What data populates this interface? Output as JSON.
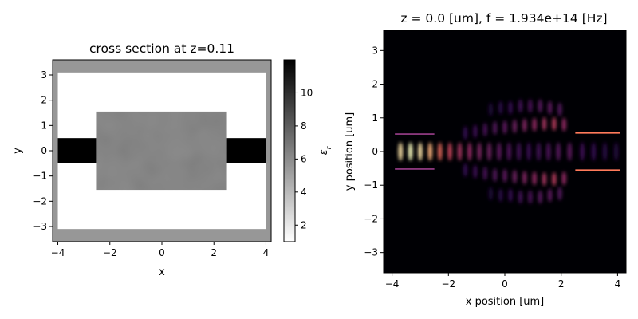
{
  "chart_data": [
    {
      "type": "heatmap",
      "title": "cross section at z=0.11",
      "xlabel": "x",
      "ylabel": "y",
      "xlim": [
        -4.2,
        4.2
      ],
      "ylim": [
        -3.6,
        3.6
      ],
      "xticks": [
        -4,
        -2,
        0,
        2,
        4
      ],
      "yticks": [
        -3,
        -2,
        -1,
        0,
        1,
        2,
        3
      ],
      "colorbar": {
        "label": "ε_r",
        "range": [
          1,
          12
        ],
        "ticks": [
          2,
          4,
          6,
          8,
          10
        ],
        "colormap": "greys"
      },
      "structures": [
        {
          "name": "pml-frame",
          "x": [
            -4.2,
            4.2
          ],
          "y": [
            -3.6,
            3.6
          ],
          "eps": 5.5
        },
        {
          "name": "simulation-domain",
          "x": [
            -4.0,
            4.0
          ],
          "y": [
            -3.1,
            3.1
          ],
          "eps": 1.0
        },
        {
          "name": "left-waveguide",
          "x": [
            -4.0,
            -2.5
          ],
          "y": [
            -0.5,
            0.5
          ],
          "eps": 12.0
        },
        {
          "name": "right-waveguide",
          "x": [
            2.5,
            4.0
          ],
          "y": [
            -0.5,
            0.5
          ],
          "eps": 12.0
        },
        {
          "name": "design-region",
          "x": [
            -2.5,
            2.5
          ],
          "y": [
            -1.55,
            1.55
          ],
          "eps": 6.0
        }
      ]
    },
    {
      "type": "heatmap",
      "title": "z = 0.0 [um], f = 1.934e+14 [Hz]",
      "xlabel": "x position [um]",
      "ylabel": "y position [um]",
      "xlim": [
        -4.3,
        4.3
      ],
      "ylim": [
        -3.6,
        3.6
      ],
      "xticks": [
        -4,
        -2,
        0,
        2,
        4
      ],
      "yticks": [
        -3,
        -2,
        -1,
        0,
        1,
        2,
        3
      ],
      "colormap": "magma",
      "background": "#000004",
      "waveguide_edges": [
        {
          "x": [
            -3.9,
            -2.5
          ],
          "y": 0.52
        },
        {
          "x": [
            -3.9,
            -2.5
          ],
          "y": -0.52
        },
        {
          "x": [
            2.5,
            4.1
          ],
          "y": 0.55
        },
        {
          "x": [
            2.5,
            4.1
          ],
          "y": -0.55
        }
      ],
      "field_lobes": [
        {
          "x": -3.7,
          "y": 0.0,
          "intensity": 0.95
        },
        {
          "x": -3.35,
          "y": 0.0,
          "intensity": 1.0
        },
        {
          "x": -3.0,
          "y": 0.0,
          "intensity": 0.95
        },
        {
          "x": -2.65,
          "y": 0.0,
          "intensity": 0.85
        },
        {
          "x": -2.3,
          "y": 0.0,
          "intensity": 0.7
        },
        {
          "x": -1.95,
          "y": 0.0,
          "intensity": 0.62
        },
        {
          "x": -1.6,
          "y": 0.0,
          "intensity": 0.55
        },
        {
          "x": -1.25,
          "y": 0.0,
          "intensity": 0.5
        },
        {
          "x": -0.9,
          "y": 0.0,
          "intensity": 0.45
        },
        {
          "x": -0.55,
          "y": 0.0,
          "intensity": 0.42
        },
        {
          "x": -0.2,
          "y": 0.0,
          "intensity": 0.38
        },
        {
          "x": 0.15,
          "y": 0.0,
          "intensity": 0.34
        },
        {
          "x": 0.5,
          "y": 0.0,
          "intensity": 0.3
        },
        {
          "x": 0.85,
          "y": 0.0,
          "intensity": 0.27
        },
        {
          "x": 1.2,
          "y": 0.0,
          "intensity": 0.3
        },
        {
          "x": 1.55,
          "y": 0.0,
          "intensity": 0.33
        },
        {
          "x": 1.9,
          "y": 0.0,
          "intensity": 0.36
        },
        {
          "x": 2.3,
          "y": 0.0,
          "intensity": 0.38
        },
        {
          "x": -1.4,
          "y": 0.55,
          "intensity": 0.25
        },
        {
          "x": -1.05,
          "y": 0.6,
          "intensity": 0.28
        },
        {
          "x": -0.7,
          "y": 0.65,
          "intensity": 0.32
        },
        {
          "x": -0.35,
          "y": 0.7,
          "intensity": 0.35
        },
        {
          "x": 0.0,
          "y": 0.72,
          "intensity": 0.38
        },
        {
          "x": 0.35,
          "y": 0.75,
          "intensity": 0.42
        },
        {
          "x": 0.7,
          "y": 0.78,
          "intensity": 0.46
        },
        {
          "x": 1.05,
          "y": 0.8,
          "intensity": 0.5
        },
        {
          "x": 1.4,
          "y": 0.82,
          "intensity": 0.55
        },
        {
          "x": 1.75,
          "y": 0.82,
          "intensity": 0.58
        },
        {
          "x": 2.1,
          "y": 0.8,
          "intensity": 0.5
        },
        {
          "x": -1.4,
          "y": -0.55,
          "intensity": 0.25
        },
        {
          "x": -1.05,
          "y": -0.6,
          "intensity": 0.28
        },
        {
          "x": -0.7,
          "y": -0.65,
          "intensity": 0.32
        },
        {
          "x": -0.35,
          "y": -0.7,
          "intensity": 0.35
        },
        {
          "x": 0.0,
          "y": -0.72,
          "intensity": 0.38
        },
        {
          "x": 0.35,
          "y": -0.75,
          "intensity": 0.42
        },
        {
          "x": 0.7,
          "y": -0.78,
          "intensity": 0.46
        },
        {
          "x": 1.05,
          "y": -0.8,
          "intensity": 0.5
        },
        {
          "x": 1.4,
          "y": -0.82,
          "intensity": 0.55
        },
        {
          "x": 1.75,
          "y": -0.82,
          "intensity": 0.58
        },
        {
          "x": 2.1,
          "y": -0.8,
          "intensity": 0.5
        },
        {
          "x": -0.5,
          "y": 1.25,
          "intensity": 0.18
        },
        {
          "x": -0.15,
          "y": 1.3,
          "intensity": 0.22
        },
        {
          "x": 0.2,
          "y": 1.3,
          "intensity": 0.26
        },
        {
          "x": 0.55,
          "y": 1.35,
          "intensity": 0.3
        },
        {
          "x": 0.9,
          "y": 1.35,
          "intensity": 0.33
        },
        {
          "x": 1.25,
          "y": 1.35,
          "intensity": 0.36
        },
        {
          "x": 1.6,
          "y": 1.3,
          "intensity": 0.38
        },
        {
          "x": 1.95,
          "y": 1.25,
          "intensity": 0.35
        },
        {
          "x": -0.5,
          "y": -1.25,
          "intensity": 0.18
        },
        {
          "x": -0.15,
          "y": -1.3,
          "intensity": 0.22
        },
        {
          "x": 0.2,
          "y": -1.3,
          "intensity": 0.26
        },
        {
          "x": 0.55,
          "y": -1.35,
          "intensity": 0.3
        },
        {
          "x": 0.9,
          "y": -1.35,
          "intensity": 0.33
        },
        {
          "x": 1.25,
          "y": -1.35,
          "intensity": 0.36
        },
        {
          "x": 1.6,
          "y": -1.3,
          "intensity": 0.38
        },
        {
          "x": 1.95,
          "y": -1.25,
          "intensity": 0.35
        },
        {
          "x": 2.75,
          "y": 0.0,
          "intensity": 0.28
        },
        {
          "x": 3.15,
          "y": 0.0,
          "intensity": 0.25
        },
        {
          "x": 3.55,
          "y": 0.0,
          "intensity": 0.22
        },
        {
          "x": 3.95,
          "y": 0.0,
          "intensity": 0.2
        }
      ]
    }
  ]
}
